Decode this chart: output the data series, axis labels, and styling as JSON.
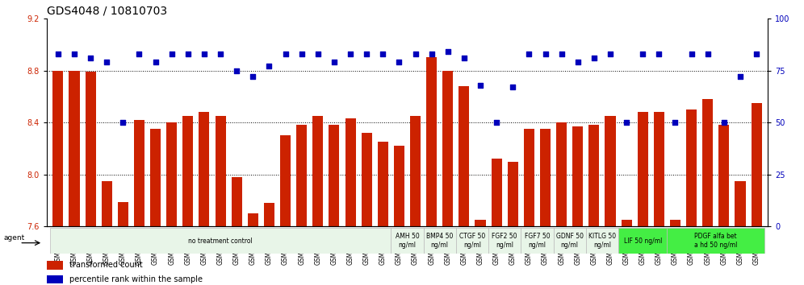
{
  "title": "GDS4048 / 10810703",
  "samples": [
    "GSM509254",
    "GSM509255",
    "GSM509256",
    "GSM510028",
    "GSM510029",
    "GSM510030",
    "GSM510031",
    "GSM510032",
    "GSM510033",
    "GSM510034",
    "GSM510035",
    "GSM510036",
    "GSM510037",
    "GSM510038",
    "GSM510039",
    "GSM510040",
    "GSM510041",
    "GSM510042",
    "GSM510043",
    "GSM510044",
    "GSM510045",
    "GSM510046",
    "GSM510047",
    "GSM509257",
    "GSM509258",
    "GSM509259",
    "GSM510063",
    "GSM510064",
    "GSM510065",
    "GSM510051",
    "GSM510052",
    "GSM510053",
    "GSM510048",
    "GSM510049",
    "GSM510050",
    "GSM510054",
    "GSM510055",
    "GSM510056",
    "GSM510057",
    "GSM510058",
    "GSM510059",
    "GSM510060",
    "GSM510061",
    "GSM510062"
  ],
  "bar_values": [
    8.8,
    8.8,
    8.79,
    7.95,
    7.79,
    8.42,
    8.35,
    8.4,
    8.45,
    8.48,
    8.45,
    7.98,
    7.7,
    7.78,
    8.3,
    8.38,
    8.45,
    8.38,
    8.43,
    8.32,
    8.25,
    8.22,
    8.45,
    8.9,
    8.8,
    8.68,
    7.65,
    8.12,
    8.1,
    8.35,
    8.35,
    8.4,
    8.37,
    8.38,
    8.45,
    7.65,
    8.48,
    8.48,
    7.65,
    8.5,
    8.58,
    8.38,
    7.95,
    8.55
  ],
  "dot_values": [
    83,
    83,
    81,
    79,
    50,
    83,
    79,
    83,
    83,
    83,
    83,
    75,
    72,
    77,
    83,
    83,
    83,
    79,
    83,
    83,
    83,
    79,
    83,
    83,
    84,
    81,
    68,
    50,
    67,
    83,
    83,
    83,
    79,
    81,
    83,
    50,
    83,
    83,
    50,
    83,
    83,
    50,
    72,
    83
  ],
  "agent_groups": [
    {
      "label": "no treatment control",
      "start": 0,
      "end": 21,
      "color": "#e8f5e8",
      "bright": false
    },
    {
      "label": "AMH 50\nng/ml",
      "start": 21,
      "end": 23,
      "color": "#e8f5e8",
      "bright": false
    },
    {
      "label": "BMP4 50\nng/ml",
      "start": 23,
      "end": 25,
      "color": "#e8f5e8",
      "bright": false
    },
    {
      "label": "CTGF 50\nng/ml",
      "start": 25,
      "end": 27,
      "color": "#e8f5e8",
      "bright": false
    },
    {
      "label": "FGF2 50\nng/ml",
      "start": 27,
      "end": 29,
      "color": "#e8f5e8",
      "bright": false
    },
    {
      "label": "FGF7 50\nng/ml",
      "start": 29,
      "end": 31,
      "color": "#e8f5e8",
      "bright": false
    },
    {
      "label": "GDNF 50\nng/ml",
      "start": 31,
      "end": 33,
      "color": "#e8f5e8",
      "bright": false
    },
    {
      "label": "KITLG 50\nng/ml",
      "start": 33,
      "end": 35,
      "color": "#e8f5e8",
      "bright": false
    },
    {
      "label": "LIF 50 ng/ml",
      "start": 35,
      "end": 38,
      "color": "#44ee44",
      "bright": true
    },
    {
      "label": "PDGF alfa bet\na hd 50 ng/ml",
      "start": 38,
      "end": 44,
      "color": "#44ee44",
      "bright": true
    }
  ],
  "ylim": [
    7.6,
    9.2
  ],
  "y2lim": [
    0,
    100
  ],
  "yticks": [
    7.6,
    8.0,
    8.4,
    8.8,
    9.2
  ],
  "y2ticks": [
    0,
    25,
    50,
    75,
    100
  ],
  "bar_color": "#cc2200",
  "dot_color": "#0000bb",
  "title_fontsize": 10,
  "tick_fontsize": 7,
  "label_fontsize": 6
}
